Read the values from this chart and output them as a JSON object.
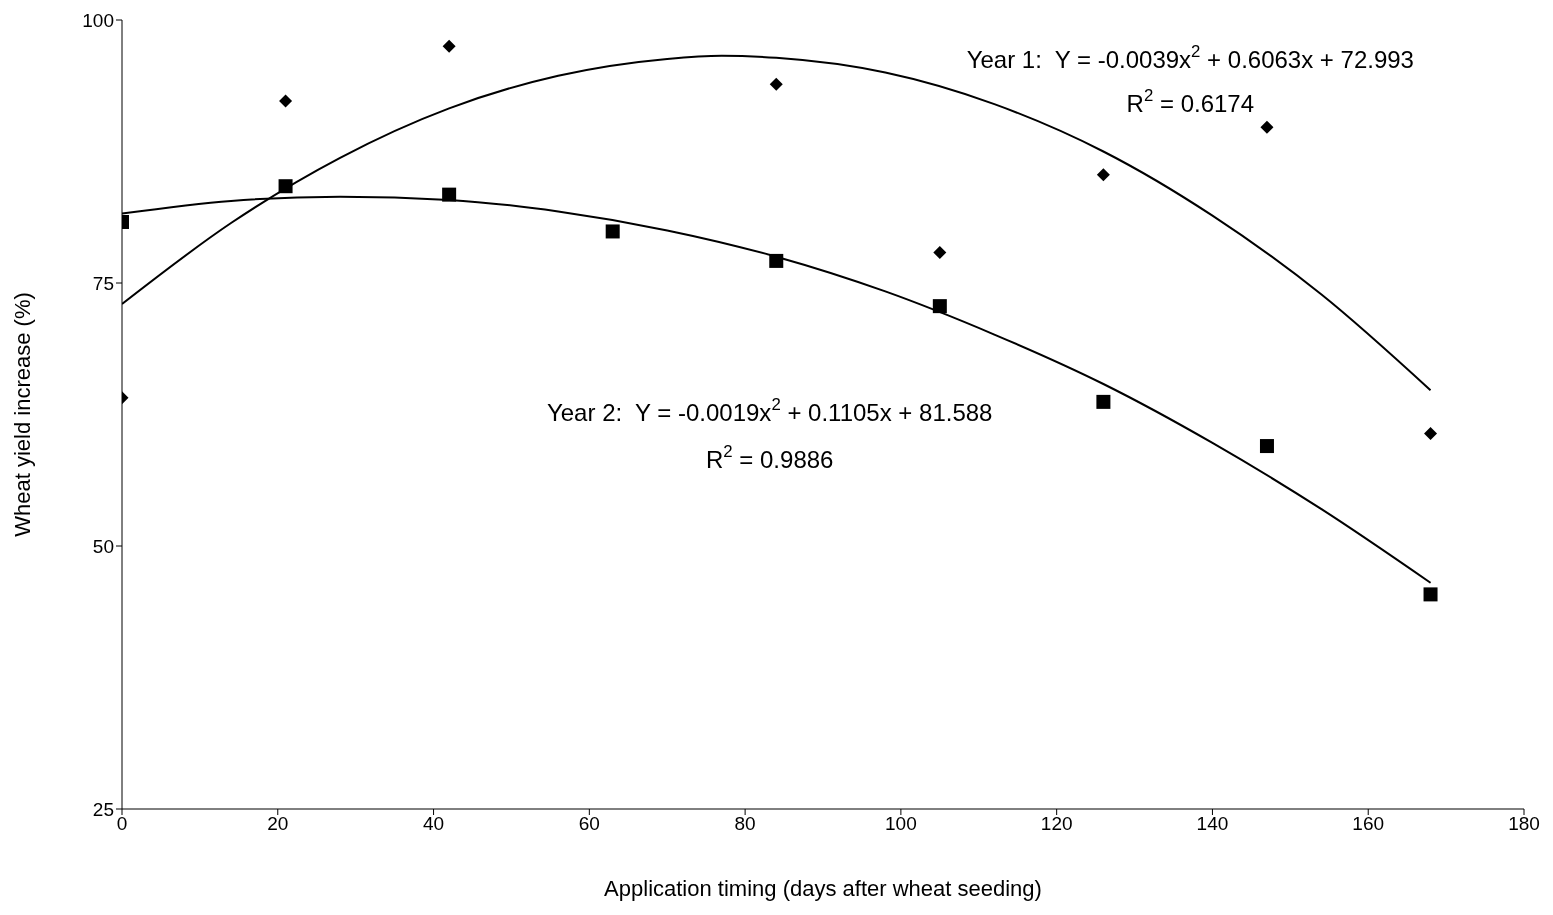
{
  "chart_data": {
    "type": "scatter",
    "xlabel": "Application timing (days after wheat seeding)",
    "ylabel": "Wheat yield increase (%)",
    "xlim": [
      0,
      180
    ],
    "xticks": [
      0,
      20,
      40,
      60,
      80,
      100,
      120,
      140,
      160,
      180
    ],
    "ylim": [
      25,
      100
    ],
    "yticks": [
      25,
      50,
      75,
      100
    ],
    "grid": false,
    "legend": false,
    "series": [
      {
        "marker": "diamond",
        "color": "#000000",
        "x": [
          0,
          21,
          42,
          84,
          105,
          126,
          147,
          168
        ],
        "values": [
          64.1,
          92.3,
          97.5,
          93.9,
          77.9,
          85.3,
          89.8,
          60.7
        ]
      },
      {
        "marker": "square",
        "color": "#000000",
        "x": [
          0,
          21,
          42,
          63,
          84,
          105,
          126,
          147,
          168
        ],
        "values": [
          80.8,
          84.2,
          83.4,
          79.9,
          77.1,
          72.8,
          63.7,
          59.5,
          45.4
        ]
      },
      {
        "type": "line",
        "marker": "none",
        "line_style": "solid",
        "color": "#000000",
        "x": [
          0,
          14,
          28,
          42,
          56,
          70,
          77,
          84,
          98,
          112,
          126,
          140,
          154,
          168
        ],
        "values": [
          73.0,
          80.7,
          86.9,
          91.6,
          94.7,
          96.3,
          96.6,
          96.4,
          95.0,
          92.0,
          87.5,
          81.4,
          73.9,
          64.8
        ]
      },
      {
        "type": "line",
        "marker": "none",
        "line_style": "solid",
        "color": "#000000",
        "x": [
          0,
          14,
          28,
          42,
          56,
          70,
          84,
          98,
          112,
          126,
          140,
          154,
          168
        ],
        "values": [
          81.6,
          82.8,
          83.2,
          82.9,
          81.8,
          80.0,
          77.5,
          74.2,
          70.1,
          65.4,
          59.8,
          53.5,
          46.5
        ]
      }
    ],
    "annotations": [
      "Year 1:  Y = -0.0039x$^{2}$ + 0.6063x + 72.993",
      "R$^{2}$ = 0.6174",
      "Year 2:  Y = -0.0019x$^{2}$ + 0.1105x + 81.588",
      "R$^{2}$ = 0.9886"
    ]
  }
}
